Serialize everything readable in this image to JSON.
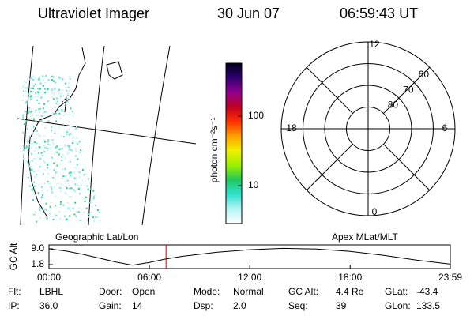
{
  "header": {
    "instrument": "Ultraviolet Imager",
    "date": "30 Jun 07",
    "time": "06:59:43 UT"
  },
  "colorbar": {
    "label": "photon cm⁻²s⁻¹",
    "log_scale": true,
    "clim": [
      2.85,
      577
    ],
    "ticks": [
      10,
      100
    ],
    "colors": [
      "#ffffff",
      "#b8f4f4",
      "#30e0d0",
      "#20c860",
      "#9cf000",
      "#f0f000",
      "#ffa000",
      "#ff3000",
      "#c00020",
      "#900090",
      "#300070",
      "#000020"
    ]
  },
  "polar": {
    "mlt_labels": [
      12,
      18,
      6,
      0
    ],
    "lat_labels": [
      60,
      70,
      80
    ]
  },
  "altitude_plot": {
    "ylabel": "GC Alt",
    "left_title": "Geographic Lat/Lon",
    "right_title": "Apex MLat/MLT",
    "xlim": [
      0,
      23.983
    ],
    "ylim": [
      0,
      10.8
    ],
    "xticks": [
      {
        "value": 0,
        "label": "00:00"
      },
      {
        "value": 6,
        "label": "06:00"
      },
      {
        "value": 12,
        "label": "12:00"
      },
      {
        "value": 18,
        "label": "18:00"
      },
      {
        "value": 23.983,
        "label": "23:59"
      }
    ],
    "yticks": [
      {
        "value": 9,
        "label": "9.0"
      },
      1.8
    ],
    "x": [
      0,
      1,
      2,
      3,
      4,
      5,
      6,
      7,
      8,
      10,
      12,
      14,
      16,
      18,
      20,
      22,
      23.983
    ],
    "values": [
      9.0,
      8.0,
      6.5,
      4.8,
      3.0,
      1.5,
      2.8,
      4.4,
      5.6,
      7.4,
      8.6,
      9.2,
      8.9,
      7.8,
      6.0,
      3.8,
      2.0
    ],
    "current_time": 6.995,
    "line_color": "#000000",
    "marker_color": "#cc0000"
  },
  "status": [
    [
      {
        "label": "Flt:",
        "value": "LBHL"
      },
      {
        "label": "Door:",
        "value": "Open"
      },
      {
        "label": "Mode:",
        "value": "Normal"
      },
      {
        "label": "GC Alt:",
        "value": "4.4 Re"
      },
      {
        "label": "GLat:",
        "value": "-43.4"
      }
    ],
    [
      {
        "label": "IP:",
        "value": "36.0"
      },
      {
        "label": "Gain:",
        "value": "14"
      },
      {
        "label": "Dsp:",
        "value": "2.0"
      },
      {
        "label": "Seq:",
        "value": "39"
      },
      {
        "label": "GLon:",
        "value": "133.5"
      }
    ]
  ]
}
